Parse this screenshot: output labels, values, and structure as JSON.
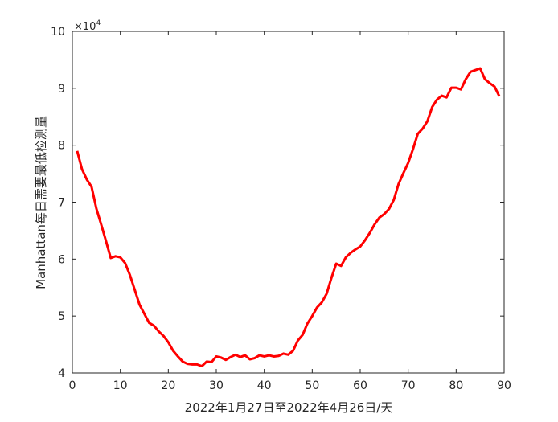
{
  "chart_data": {
    "type": "line",
    "title": "",
    "xlabel": "2022年1月27日至2022年4月26日/天",
    "ylabel": "Manhattan每日需要最低检测量",
    "y_exponent_label": "×10",
    "y_exponent_power": "4",
    "xlim": [
      0,
      90
    ],
    "ylim": [
      40000,
      100000
    ],
    "xticks": [
      0,
      10,
      20,
      30,
      40,
      50,
      60,
      70,
      80,
      90
    ],
    "ytick_values": [
      40000,
      50000,
      60000,
      70000,
      80000,
      90000,
      100000
    ],
    "ytick_labels": [
      "4",
      "5",
      "6",
      "7",
      "8",
      "9",
      "10"
    ],
    "grid": false,
    "series": [
      {
        "color": "#ff0000",
        "x": [
          1,
          2,
          3,
          4,
          5,
          6,
          7,
          8,
          9,
          10,
          11,
          12,
          13,
          14,
          15,
          16,
          17,
          18,
          19,
          20,
          21,
          22,
          23,
          24,
          25,
          26,
          27,
          28,
          29,
          30,
          31,
          32,
          33,
          34,
          35,
          36,
          37,
          38,
          39,
          40,
          41,
          42,
          43,
          44,
          45,
          46,
          47,
          48,
          49,
          50,
          51,
          52,
          53,
          54,
          55,
          56,
          57,
          58,
          59,
          60,
          61,
          62,
          63,
          64,
          65,
          66,
          67,
          68,
          69,
          70,
          71,
          72,
          73,
          74,
          75,
          76,
          77,
          78,
          79,
          80,
          81,
          82,
          83,
          84,
          85,
          86,
          87,
          88,
          89
        ],
        "y": [
          79000,
          75800,
          74000,
          72700,
          68900,
          66100,
          63200,
          60200,
          60500,
          60300,
          59300,
          57200,
          54600,
          52000,
          50400,
          48800,
          48300,
          47300,
          46500,
          45400,
          43900,
          42900,
          42000,
          41600,
          41500,
          41500,
          41200,
          42000,
          41900,
          42900,
          42700,
          42300,
          42800,
          43200,
          42800,
          43100,
          42400,
          42600,
          43100,
          42900,
          43100,
          42900,
          43000,
          43400,
          43200,
          43900,
          45700,
          46700,
          48700,
          50000,
          51500,
          52400,
          53900,
          56700,
          59200,
          58800,
          60300,
          61100,
          61700,
          62200,
          63300,
          64600,
          66100,
          67300,
          67900,
          68800,
          70400,
          73200,
          75100,
          76900,
          79300,
          82000,
          82900,
          84200,
          86700,
          88000,
          88700,
          88400,
          90100,
          90100,
          89800,
          91600,
          92900,
          93200,
          93500,
          91600,
          90900,
          90300,
          88600
        ]
      }
    ]
  }
}
